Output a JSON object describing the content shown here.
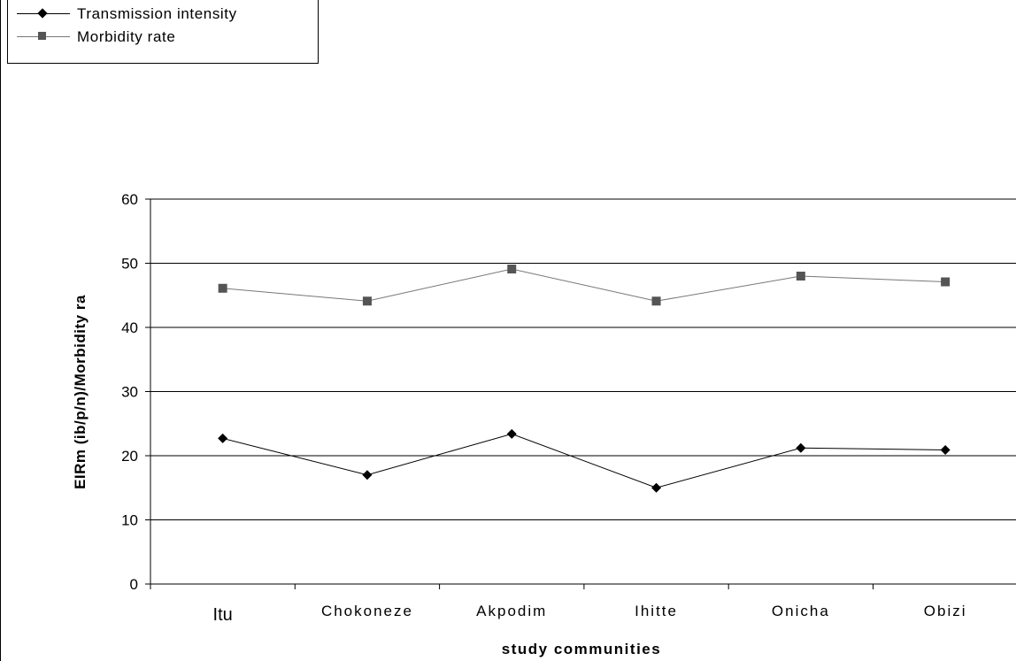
{
  "chart_data": {
    "type": "line",
    "categories": [
      "Itu",
      "Chokoneze",
      "Akpodim",
      "Ihitte",
      "Onicha",
      "Obizi"
    ],
    "series": [
      {
        "name": "Transmission intensity",
        "values": [
          22.7,
          17.0,
          23.4,
          15.0,
          21.2,
          20.9
        ],
        "color": "#000000",
        "marker": "diamond"
      },
      {
        "name": "Morbidity rate",
        "values": [
          46.1,
          44.1,
          49.1,
          44.1,
          48.0,
          47.1
        ],
        "color": "#555555",
        "marker": "square"
      }
    ],
    "xlabel": "study communities",
    "ylabel": "EIRm (ib/p/n)/Morbidity ra",
    "ylim": [
      0,
      60
    ],
    "yticks": [
      0,
      10,
      20,
      30,
      40,
      50,
      60
    ],
    "grid": true,
    "legend_position": "top-left"
  }
}
